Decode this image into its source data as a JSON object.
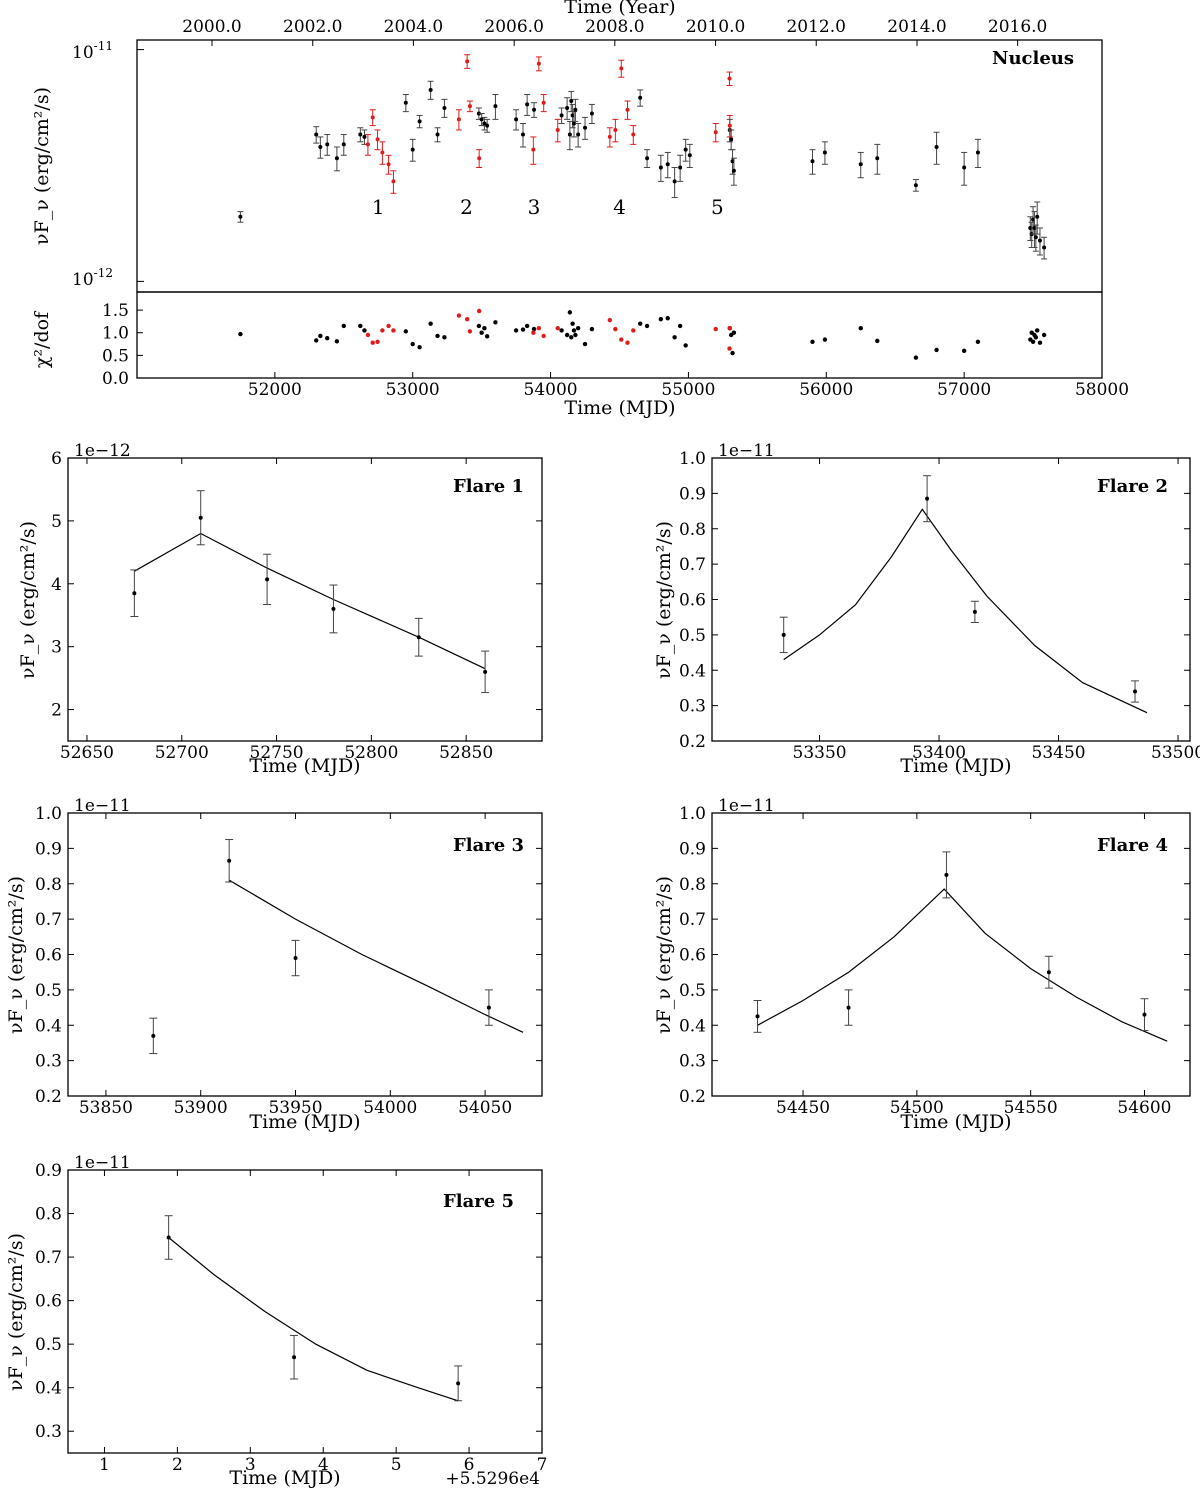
{
  "colors": {
    "black": "#000000",
    "red": "#e01b1b",
    "err": "#444444"
  },
  "chart_data": [
    {
      "type": "scatter",
      "title": "Nucleus",
      "ylabel": "νF_ν (erg/cm²/s)",
      "top_axis_label": "Time (Year)",
      "top_ticks": [
        "2000.0",
        "2002.0",
        "2004.0",
        "2006.0",
        "2008.0",
        "2010.0",
        "2012.0",
        "2014.0",
        "2016.0"
      ],
      "top_tick_mjd": [
        51544,
        52275,
        53005,
        53736,
        54466,
        55197,
        55927,
        56658,
        57388
      ],
      "ytick_labels": {
        "high": "10",
        "high_exp": "-11",
        "low": "10",
        "low_exp": "-12"
      },
      "yscale": "log",
      "ylim": [
        9e-13,
        1.1e-11
      ],
      "xlim": [
        51000,
        58000
      ],
      "flare_labels": [
        {
          "text": "1",
          "mjd": 52750
        },
        {
          "text": "2",
          "mjd": 53390
        },
        {
          "text": "3",
          "mjd": 53880
        },
        {
          "text": "4",
          "mjd": 54500
        },
        {
          "text": "5",
          "mjd": 55210
        }
      ],
      "black_points": [
        [
          51750,
          1.9e-12,
          1e-13
        ],
        [
          52300,
          4.3e-12,
          3.5e-13
        ],
        [
          52330,
          3.8e-12,
          4e-13
        ],
        [
          52380,
          3.9e-12,
          4e-13
        ],
        [
          52450,
          3.4e-12,
          4e-13
        ],
        [
          52500,
          3.9e-12,
          4e-13
        ],
        [
          52620,
          4.3e-12,
          3e-13
        ],
        [
          52650,
          4.2e-12,
          3e-13
        ],
        [
          52950,
          5.9e-12,
          5e-13
        ],
        [
          53000,
          3.7e-12,
          4e-13
        ],
        [
          53050,
          4.9e-12,
          3e-13
        ],
        [
          53130,
          6.7e-12,
          6e-13
        ],
        [
          53180,
          4.3e-12,
          3e-13
        ],
        [
          53230,
          5.6e-12,
          5e-13
        ],
        [
          53480,
          5.3e-12,
          3e-13
        ],
        [
          53500,
          5e-12,
          3e-13
        ],
        [
          53520,
          4.8e-12,
          3e-13
        ],
        [
          53540,
          4.7e-12,
          3e-13
        ],
        [
          53600,
          5.7e-12,
          7e-13
        ],
        [
          53750,
          5e-12,
          5e-13
        ],
        [
          53800,
          4.3e-12,
          5e-13
        ],
        [
          53830,
          5.8e-12,
          6e-13
        ],
        [
          53880,
          5.5e-12,
          4e-13
        ],
        [
          54080,
          5.2e-12,
          4e-13
        ],
        [
          54120,
          5.6e-12,
          6e-13
        ],
        [
          54140,
          4.3e-12,
          6e-13
        ],
        [
          54150,
          6e-12,
          6e-13
        ],
        [
          54160,
          5.2e-12,
          6e-13
        ],
        [
          54170,
          4.8e-12,
          6e-13
        ],
        [
          54180,
          5.5e-12,
          6e-13
        ],
        [
          54200,
          4.3e-12,
          5e-13
        ],
        [
          54250,
          4.6e-12,
          5e-13
        ],
        [
          54300,
          5.3e-12,
          5e-13
        ],
        [
          54650,
          6.2e-12,
          5e-13
        ],
        [
          54700,
          3.4e-12,
          3e-13
        ],
        [
          54800,
          3.1e-12,
          4e-13
        ],
        [
          54850,
          3.2e-12,
          4e-13
        ],
        [
          54900,
          2.7e-12,
          4e-13
        ],
        [
          54940,
          3.1e-12,
          4e-13
        ],
        [
          54980,
          3.7e-12,
          4e-13
        ],
        [
          55010,
          3.5e-12,
          4e-13
        ],
        [
          55300,
          4.5e-12,
          5e-13
        ],
        [
          55310,
          4.1e-12,
          4e-13
        ],
        [
          55320,
          3.3e-12,
          4e-13
        ],
        [
          55330,
          3e-12,
          4e-13
        ],
        [
          55900,
          3.3e-12,
          4e-13
        ],
        [
          55990,
          3.6e-12,
          4e-13
        ],
        [
          56250,
          3.2e-12,
          4e-13
        ],
        [
          56370,
          3.4e-12,
          5e-13
        ],
        [
          56650,
          2.6e-12,
          1.5e-13
        ],
        [
          56800,
          3.8e-12,
          6e-13
        ],
        [
          57000,
          3.1e-12,
          5e-13
        ],
        [
          57100,
          3.6e-12,
          5e-13
        ],
        [
          57480,
          1.7e-12,
          2e-13
        ],
        [
          57490,
          1.6e-12,
          2e-13
        ],
        [
          57500,
          1.85e-12,
          2.5e-13
        ],
        [
          57510,
          1.7e-12,
          3e-13
        ],
        [
          57520,
          1.55e-12,
          2e-13
        ],
        [
          57530,
          1.9e-12,
          3e-13
        ],
        [
          57550,
          1.5e-12,
          2e-13
        ],
        [
          57580,
          1.4e-12,
          1.5e-13
        ]
      ],
      "red_points": [
        [
          52675,
          3.9e-12,
          4e-13
        ],
        [
          52710,
          5.1e-12,
          4e-13
        ],
        [
          52745,
          4.1e-12,
          4e-13
        ],
        [
          52780,
          3.6e-12,
          4e-13
        ],
        [
          52825,
          3.2e-12,
          3e-13
        ],
        [
          52860,
          2.7e-12,
          3e-13
        ],
        [
          53335,
          5e-12,
          5e-13
        ],
        [
          53395,
          8.9e-12,
          6e-13
        ],
        [
          53415,
          5.7e-12,
          3e-13
        ],
        [
          53482,
          3.4e-12,
          3e-13
        ],
        [
          53875,
          3.7e-12,
          5e-13
        ],
        [
          53915,
          8.7e-12,
          6e-13
        ],
        [
          53950,
          5.9e-12,
          5e-13
        ],
        [
          54052,
          4.5e-12,
          5e-13
        ],
        [
          54430,
          4.2e-12,
          4e-13
        ],
        [
          54470,
          4.5e-12,
          5e-13
        ],
        [
          54513,
          8.3e-12,
          7e-13
        ],
        [
          54558,
          5.5e-12,
          5e-13
        ],
        [
          54600,
          4.3e-12,
          4e-13
        ],
        [
          55198,
          4.4e-12,
          4e-13
        ],
        [
          55298,
          7.5e-12,
          5e-13
        ],
        [
          55300,
          4.7e-12,
          5e-13
        ]
      ]
    },
    {
      "type": "scatter",
      "ylabel": "χ²/dof",
      "xlabel": "Time (MJD)",
      "xlim": [
        51000,
        58000
      ],
      "ylim": [
        0,
        1.9
      ],
      "xticks": [
        52000,
        53000,
        54000,
        55000,
        56000,
        57000,
        58000
      ],
      "yticks": [
        0.0,
        0.5,
        1.0,
        1.5
      ],
      "ytick_labels": [
        "0.0",
        "0.5",
        "1.0",
        "1.5"
      ],
      "xtick_labels": [
        "52000",
        "53000",
        "54000",
        "55000",
        "56000",
        "57000",
        "58000"
      ],
      "black_points": [
        [
          51750,
          0.97
        ],
        [
          52300,
          0.83
        ],
        [
          52330,
          0.93
        ],
        [
          52380,
          0.88
        ],
        [
          52450,
          0.81
        ],
        [
          52500,
          1.15
        ],
        [
          52620,
          1.15
        ],
        [
          52650,
          1.05
        ],
        [
          52950,
          1.03
        ],
        [
          53000,
          0.75
        ],
        [
          53050,
          0.68
        ],
        [
          53130,
          1.2
        ],
        [
          53180,
          0.93
        ],
        [
          53230,
          0.9
        ],
        [
          53480,
          1.15
        ],
        [
          53500,
          1.0
        ],
        [
          53520,
          1.1
        ],
        [
          53540,
          0.92
        ],
        [
          53600,
          1.23
        ],
        [
          53750,
          1.05
        ],
        [
          53800,
          1.07
        ],
        [
          53830,
          1.15
        ],
        [
          53880,
          1.08
        ],
        [
          54080,
          1.05
        ],
        [
          54120,
          0.95
        ],
        [
          54140,
          1.45
        ],
        [
          54150,
          0.9
        ],
        [
          54160,
          1.2
        ],
        [
          54170,
          1.05
        ],
        [
          54180,
          0.95
        ],
        [
          54200,
          1.1
        ],
        [
          54250,
          0.75
        ],
        [
          54300,
          1.08
        ],
        [
          54650,
          1.2
        ],
        [
          54700,
          1.15
        ],
        [
          54800,
          1.3
        ],
        [
          54850,
          1.32
        ],
        [
          54900,
          0.9
        ],
        [
          54940,
          1.15
        ],
        [
          54980,
          0.72
        ],
        [
          55300,
          1.1
        ],
        [
          55310,
          0.95
        ],
        [
          55320,
          0.55
        ],
        [
          55330,
          1.0
        ],
        [
          55900,
          0.8
        ],
        [
          55990,
          0.85
        ],
        [
          56250,
          1.1
        ],
        [
          56370,
          0.82
        ],
        [
          56650,
          0.45
        ],
        [
          56800,
          0.62
        ],
        [
          57000,
          0.6
        ],
        [
          57100,
          0.8
        ],
        [
          57480,
          0.85
        ],
        [
          57490,
          1.0
        ],
        [
          57500,
          0.8
        ],
        [
          57510,
          0.95
        ],
        [
          57520,
          0.9
        ],
        [
          57530,
          1.05
        ],
        [
          57550,
          0.78
        ],
        [
          57580,
          0.95
        ]
      ],
      "red_points": [
        [
          52675,
          0.95
        ],
        [
          52710,
          0.78
        ],
        [
          52745,
          0.8
        ],
        [
          52780,
          1.05
        ],
        [
          52825,
          1.15
        ],
        [
          52860,
          1.05
        ],
        [
          53335,
          1.38
        ],
        [
          53395,
          1.3
        ],
        [
          53415,
          1.03
        ],
        [
          53482,
          1.48
        ],
        [
          53875,
          1.0
        ],
        [
          53915,
          1.1
        ],
        [
          53950,
          0.93
        ],
        [
          54052,
          1.1
        ],
        [
          54430,
          1.28
        ],
        [
          54470,
          1.08
        ],
        [
          54513,
          0.85
        ],
        [
          54558,
          0.78
        ],
        [
          54600,
          1.05
        ],
        [
          55198,
          1.08
        ],
        [
          55298,
          0.65
        ],
        [
          55300,
          1.1
        ]
      ]
    },
    {
      "type": "scatter",
      "title": "Flare 1",
      "xlabel": "Time (MJD)",
      "ylabel": "νF_ν (erg/cm²/s)",
      "offset_label": "1e−12",
      "xlim": [
        52640,
        52890
      ],
      "ylim": [
        1.5,
        6
      ],
      "xticks": [
        52650,
        52700,
        52750,
        52800,
        52850
      ],
      "yticks": [
        2,
        3,
        4,
        5,
        6
      ],
      "xtick_labels": [
        "52650",
        "52700",
        "52750",
        "52800",
        "52850"
      ],
      "ytick_labels": [
        "2",
        "3",
        "4",
        "5",
        "6"
      ],
      "points": [
        [
          52675,
          3.85,
          0.37
        ],
        [
          52710,
          5.05,
          0.43
        ],
        [
          52745,
          4.07,
          0.4
        ],
        [
          52780,
          3.6,
          0.38
        ],
        [
          52825,
          3.15,
          0.3
        ],
        [
          52860,
          2.6,
          0.33
        ]
      ],
      "model": [
        [
          52675,
          4.2
        ],
        [
          52710,
          4.8
        ],
        [
          52745,
          4.25
        ],
        [
          52780,
          3.75
        ],
        [
          52825,
          3.15
        ],
        [
          52860,
          2.65
        ]
      ]
    },
    {
      "type": "scatter",
      "title": "Flare 2",
      "xlabel": "Time (MJD)",
      "ylabel": "νF_ν (erg/cm²/s)",
      "offset_label": "1e−11",
      "xlim": [
        53305,
        53505
      ],
      "ylim": [
        0.2,
        1.0
      ],
      "xticks": [
        53350,
        53400,
        53450,
        53500
      ],
      "yticks": [
        0.2,
        0.3,
        0.4,
        0.5,
        0.6,
        0.7,
        0.8,
        0.9,
        1.0
      ],
      "xtick_labels": [
        "53350",
        "53400",
        "53450",
        "53500"
      ],
      "ytick_labels": [
        "0.2",
        "0.3",
        "0.4",
        "0.5",
        "0.6",
        "0.7",
        "0.8",
        "0.9",
        "1.0"
      ],
      "points": [
        [
          53335,
          0.5,
          0.05
        ],
        [
          53395,
          0.885,
          0.065
        ],
        [
          53415,
          0.565,
          0.03
        ],
        [
          53482,
          0.34,
          0.03
        ]
      ],
      "model": [
        [
          53335,
          0.43
        ],
        [
          53350,
          0.5
        ],
        [
          53365,
          0.585
        ],
        [
          53380,
          0.72
        ],
        [
          53393,
          0.855
        ],
        [
          53405,
          0.74
        ],
        [
          53420,
          0.61
        ],
        [
          53440,
          0.47
        ],
        [
          53460,
          0.365
        ],
        [
          53487,
          0.28
        ]
      ]
    },
    {
      "type": "scatter",
      "title": "Flare 3",
      "xlabel": "Time (MJD)",
      "ylabel": "νF_ν (erg/cm²/s)",
      "offset_label": "1e−11",
      "xlim": [
        53830,
        54080
      ],
      "ylim": [
        0.2,
        1.0
      ],
      "xticks": [
        53850,
        53900,
        53950,
        54000,
        54050
      ],
      "yticks": [
        0.2,
        0.3,
        0.4,
        0.5,
        0.6,
        0.7,
        0.8,
        0.9,
        1.0
      ],
      "xtick_labels": [
        "53850",
        "53900",
        "53950",
        "54000",
        "54050"
      ],
      "ytick_labels": [
        "0.2",
        "0.3",
        "0.4",
        "0.5",
        "0.6",
        "0.7",
        "0.8",
        "0.9",
        "1.0"
      ],
      "points": [
        [
          53875,
          0.37,
          0.05
        ],
        [
          53915,
          0.865,
          0.06
        ],
        [
          53950,
          0.59,
          0.05
        ],
        [
          54052,
          0.45,
          0.05
        ]
      ],
      "model": [
        [
          53915,
          0.81
        ],
        [
          53950,
          0.7
        ],
        [
          53985,
          0.6
        ],
        [
          54020,
          0.51
        ],
        [
          54050,
          0.43
        ],
        [
          54070,
          0.38
        ]
      ]
    },
    {
      "type": "scatter",
      "title": "Flare 4",
      "xlabel": "Time (MJD)",
      "ylabel": "νF_ν (erg/cm²/s)",
      "offset_label": "1e−11",
      "xlim": [
        54410,
        54620
      ],
      "ylim": [
        0.2,
        1.0
      ],
      "xticks": [
        54450,
        54500,
        54550,
        54600
      ],
      "yticks": [
        0.2,
        0.3,
        0.4,
        0.5,
        0.6,
        0.7,
        0.8,
        0.9,
        1.0
      ],
      "xtick_labels": [
        "54450",
        "54500",
        "54550",
        "54600"
      ],
      "ytick_labels": [
        "0.2",
        "0.3",
        "0.4",
        "0.5",
        "0.6",
        "0.7",
        "0.8",
        "0.9",
        "1.0"
      ],
      "points": [
        [
          54430,
          0.425,
          0.045
        ],
        [
          54470,
          0.45,
          0.05
        ],
        [
          54513,
          0.825,
          0.065
        ],
        [
          54558,
          0.55,
          0.045
        ],
        [
          54600,
          0.43,
          0.045
        ]
      ],
      "model": [
        [
          54430,
          0.4
        ],
        [
          54450,
          0.47
        ],
        [
          54470,
          0.55
        ],
        [
          54490,
          0.65
        ],
        [
          54512,
          0.785
        ],
        [
          54530,
          0.66
        ],
        [
          54550,
          0.56
        ],
        [
          54570,
          0.48
        ],
        [
          54590,
          0.41
        ],
        [
          54610,
          0.355
        ]
      ]
    },
    {
      "type": "scatter",
      "title": "Flare 5",
      "xlabel": "Time (MJD)",
      "ylabel": "νF_ν (erg/cm²/s)",
      "offset_label": "1e−11",
      "x_offset_label": "+5.5296e4",
      "xlim": [
        0.5,
        7
      ],
      "ylim": [
        0.25,
        0.9
      ],
      "xticks": [
        1,
        2,
        3,
        4,
        5,
        6,
        7
      ],
      "yticks": [
        0.3,
        0.4,
        0.5,
        0.6,
        0.7,
        0.8,
        0.9
      ],
      "xtick_labels": [
        "1",
        "2",
        "3",
        "4",
        "5",
        "6",
        "7"
      ],
      "ytick_labels": [
        "0.3",
        "0.4",
        "0.5",
        "0.6",
        "0.7",
        "0.8",
        "0.9"
      ],
      "points": [
        [
          1.88,
          0.745,
          0.05
        ],
        [
          3.6,
          0.47,
          0.05
        ],
        [
          5.85,
          0.41,
          0.04
        ]
      ],
      "model": [
        [
          1.88,
          0.745
        ],
        [
          2.5,
          0.66
        ],
        [
          3.2,
          0.575
        ],
        [
          3.9,
          0.5
        ],
        [
          4.6,
          0.44
        ],
        [
          5.3,
          0.4
        ],
        [
          5.85,
          0.37
        ]
      ]
    }
  ]
}
